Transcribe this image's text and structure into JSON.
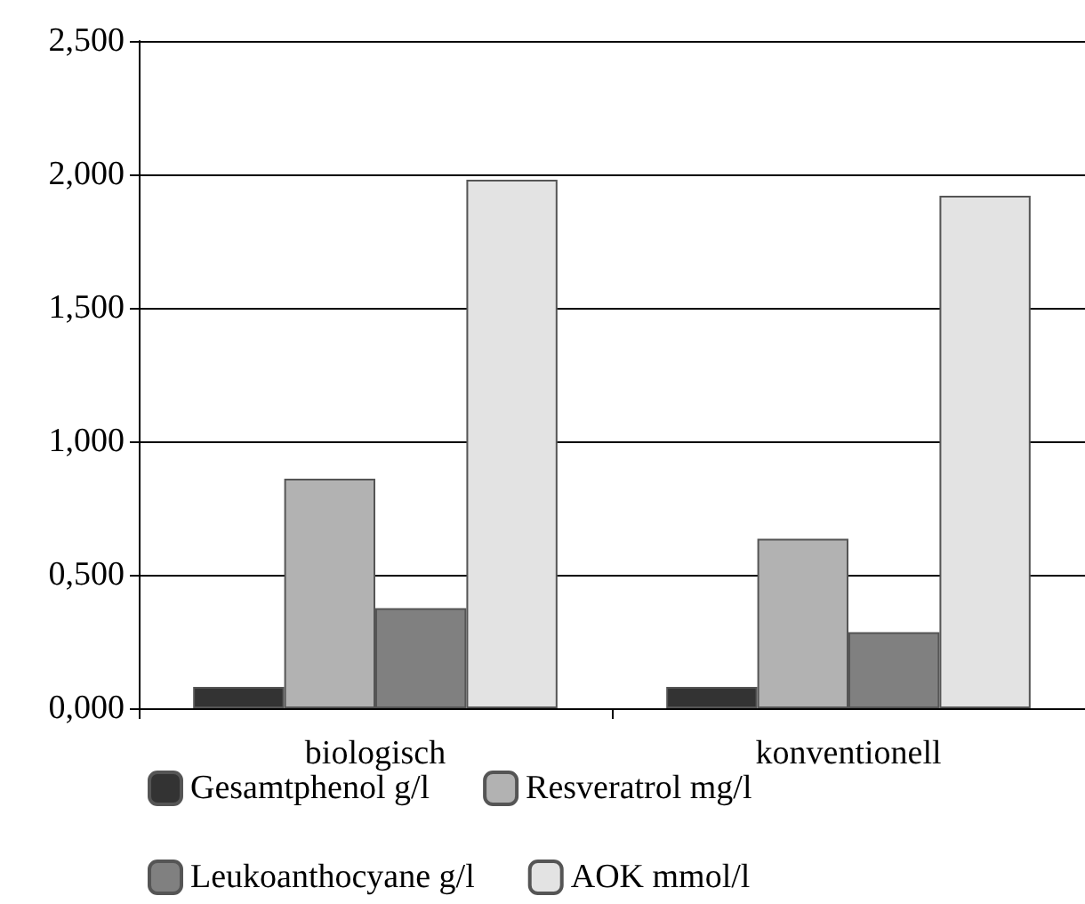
{
  "chart_data": {
    "type": "bar",
    "categories": [
      "biologisch",
      "konventionell"
    ],
    "series": [
      {
        "name": "Gesamtphenol g/l",
        "color": "#333333",
        "values": [
          0.08,
          0.08
        ]
      },
      {
        "name": "Resveratrol mg/l",
        "color": "#b2b2b2",
        "values": [
          0.86,
          0.635
        ]
      },
      {
        "name": "Leukoanthocyane g/l",
        "color": "#808080",
        "values": [
          0.375,
          0.285
        ]
      },
      {
        "name": "AOK mmol/l",
        "color": "#e3e3e3",
        "values": [
          1.98,
          1.92
        ]
      }
    ],
    "ylim": [
      0,
      2.5
    ],
    "yticks": [
      {
        "value": 0,
        "label": "0,000"
      },
      {
        "value": 0.5,
        "label": "0,500"
      },
      {
        "value": 1,
        "label": "1,000"
      },
      {
        "value": 1.5,
        "label": "1,500"
      },
      {
        "value": 2,
        "label": "2,000"
      },
      {
        "value": 2.5,
        "label": "2,500"
      }
    ],
    "grid": "y",
    "legend": "bottom"
  }
}
